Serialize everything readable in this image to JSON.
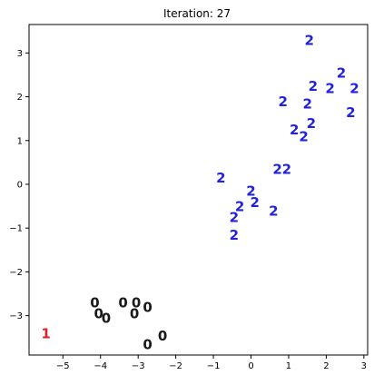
{
  "chart_data": {
    "type": "scatter",
    "title": "Iteration: 27",
    "xlabel": "",
    "ylabel": "",
    "xlim": [
      -5.9,
      3.1
    ],
    "ylim": [
      -3.9,
      3.65
    ],
    "xticks": [
      -5,
      -4,
      -3,
      -2,
      -1,
      0,
      1,
      2,
      3
    ],
    "yticks": [
      -3,
      -2,
      -1,
      0,
      1,
      2,
      3
    ],
    "xtick_labels": [
      "−5",
      "−4",
      "−3",
      "−2",
      "−1",
      "0",
      "1",
      "2",
      "3"
    ],
    "ytick_labels": [
      "−3",
      "−2",
      "−1",
      "0",
      "1",
      "2",
      "3"
    ],
    "grid": false,
    "legend": false,
    "marker": "text glyph (cluster label)",
    "series": [
      {
        "label_text": "0",
        "color": "#1a1a1a",
        "points": [
          [
            -4.15,
            -2.7
          ],
          [
            -4.05,
            -2.95
          ],
          [
            -3.85,
            -3.05
          ],
          [
            -3.4,
            -2.7
          ],
          [
            -3.05,
            -2.7
          ],
          [
            -3.1,
            -2.95
          ],
          [
            -2.75,
            -2.8
          ],
          [
            -2.75,
            -3.65
          ],
          [
            -2.35,
            -3.45
          ]
        ]
      },
      {
        "label_text": "1",
        "color": "#e02020",
        "points": [
          [
            -5.45,
            -3.4
          ]
        ]
      },
      {
        "label_text": "2",
        "color": "#2222dd",
        "points": [
          [
            1.55,
            3.3
          ],
          [
            2.4,
            2.55
          ],
          [
            1.65,
            2.25
          ],
          [
            2.1,
            2.2
          ],
          [
            2.75,
            2.2
          ],
          [
            0.85,
            1.9
          ],
          [
            1.5,
            1.85
          ],
          [
            2.65,
            1.65
          ],
          [
            1.6,
            1.4
          ],
          [
            1.15,
            1.25
          ],
          [
            1.4,
            1.1
          ],
          [
            -0.8,
            0.15
          ],
          [
            0.7,
            0.35
          ],
          [
            0.95,
            0.35
          ],
          [
            0.0,
            -0.15
          ],
          [
            0.1,
            -0.4
          ],
          [
            -0.3,
            -0.5
          ],
          [
            -0.45,
            -0.75
          ],
          [
            0.6,
            -0.6
          ],
          [
            -0.45,
            -1.15
          ]
        ]
      }
    ]
  }
}
